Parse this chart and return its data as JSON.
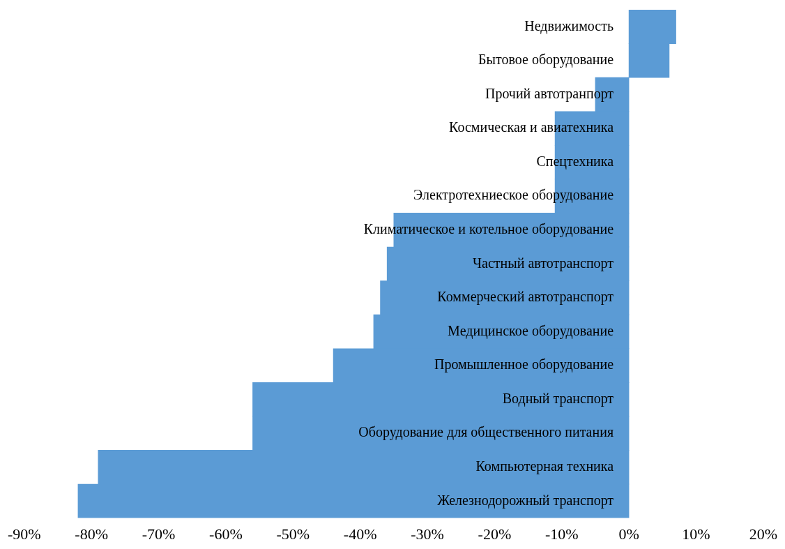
{
  "chart_data": {
    "type": "bar",
    "orientation": "horizontal",
    "categories": [
      "Недвижимость",
      "Бытовое оборудование",
      "Прочий автотранпорт",
      "Космическая и авиатехника",
      "Спецтехника",
      "Электротехниеское оборудование",
      "Климатическое и котельное оборудование",
      "Частный автотранспорт",
      "Коммерческий автотранспорт",
      "Медицинское оборудование",
      "Промышленное оборудование",
      "Водный транспорт",
      "Оборудование для общественного питания",
      "Компьютерная техника",
      "Железнодорожный транспорт"
    ],
    "values": [
      7,
      6,
      -5,
      -11,
      -11,
      -11,
      -35,
      -36,
      -37,
      -38,
      -44,
      -56,
      -56,
      -79,
      -82
    ],
    "color": "#5b9bd5",
    "xlim": [
      -90,
      20
    ],
    "xticks": [
      {
        "value": -90,
        "label": "-90%"
      },
      {
        "value": -80,
        "label": "-80%"
      },
      {
        "value": -70,
        "label": "-70%"
      },
      {
        "value": -60,
        "label": "-60%"
      },
      {
        "value": -50,
        "label": "-50%"
      },
      {
        "value": -40,
        "label": "-40%"
      },
      {
        "value": -30,
        "label": "-30%"
      },
      {
        "value": -20,
        "label": "-20%"
      },
      {
        "value": -10,
        "label": "-10%"
      },
      {
        "value": 0,
        "label": "0%"
      },
      {
        "value": 10,
        "label": "10%"
      },
      {
        "value": 20,
        "label": "20%"
      }
    ]
  }
}
